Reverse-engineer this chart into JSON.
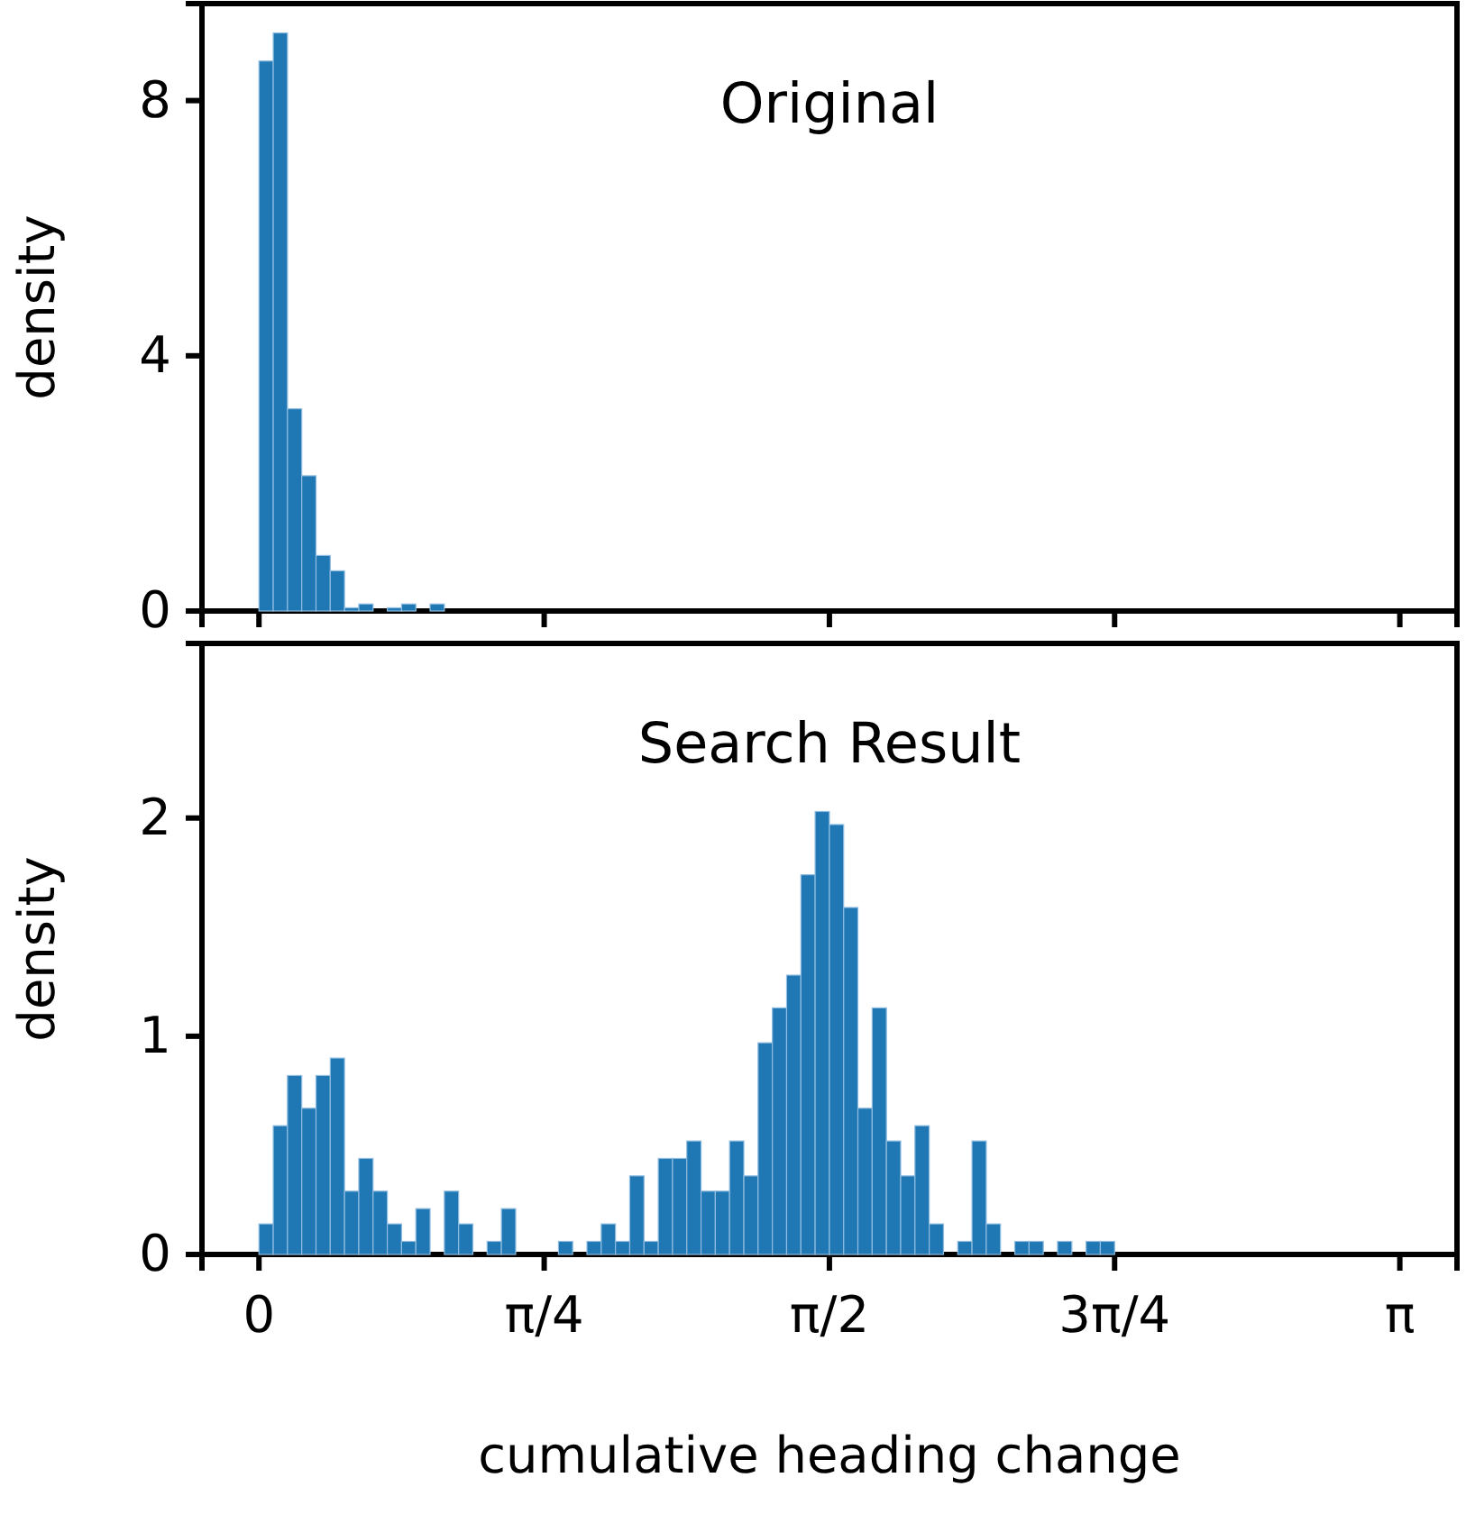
{
  "chart_data": [
    {
      "type": "histogram",
      "title": "Original",
      "ylabel": "density",
      "color": "#1f77b4",
      "bins": [
        0,
        0.0393,
        0.0785,
        0.1178,
        0.1571,
        0.1963,
        0.2356,
        0.2749,
        0.3142,
        0.3534,
        0.3927,
        0.432,
        0.4712,
        0.5105
      ],
      "values": [
        8.62,
        9.06,
        3.17,
        2.12,
        0.87,
        0.63,
        0.05,
        0.11,
        0,
        0.05,
        0.11,
        0,
        0.11
      ],
      "xlim": [
        -0.157,
        3.299
      ],
      "xticks": [
        {
          "value": 0,
          "label": null
        },
        {
          "value": 0.7854,
          "label": null
        },
        {
          "value": 1.5708,
          "label": null
        },
        {
          "value": 2.3562,
          "label": null
        },
        {
          "value": 3.1416,
          "label": null
        }
      ],
      "ylim": [
        0,
        9.52
      ],
      "yticks": [
        0,
        4,
        8
      ],
      "tick_labels": "y"
    },
    {
      "type": "histogram",
      "title": "Search Result",
      "ylabel": "density",
      "xlabel": "cumulative heading change",
      "color": "#1f77b4",
      "bins": [
        0,
        0.0393,
        0.0785,
        0.1178,
        0.1571,
        0.1963,
        0.2356,
        0.2749,
        0.3142,
        0.3534,
        0.3927,
        0.432,
        0.4712,
        0.5105,
        0.5498,
        0.589,
        0.6283,
        0.6676,
        0.7069,
        0.7461,
        0.7854,
        0.8247,
        0.8639,
        0.9032,
        0.9425,
        0.9817,
        1.021,
        1.0603,
        1.0996,
        1.1388,
        1.1781,
        1.2174,
        1.2566,
        1.2959,
        1.3352,
        1.3744,
        1.4137,
        1.453,
        1.4923,
        1.5315,
        1.5708,
        1.6101,
        1.6493,
        1.6886,
        1.7279,
        1.7671,
        1.8064,
        1.8457,
        1.885,
        1.9242,
        1.9635,
        2.0028,
        2.042,
        2.0813,
        2.1206,
        2.1598,
        2.1991,
        2.2384,
        2.2777,
        2.3169,
        2.3562
      ],
      "values": [
        0.14,
        0.59,
        0.82,
        0.67,
        0.82,
        0.9,
        0.29,
        0.44,
        0.29,
        0.14,
        0.06,
        0.21,
        0,
        0.29,
        0.14,
        0,
        0.06,
        0.21,
        0,
        0,
        0,
        0.06,
        0,
        0.06,
        0.14,
        0.06,
        0.36,
        0.06,
        0.44,
        0.44,
        0.52,
        0.29,
        0.29,
        0.52,
        0.36,
        0.97,
        1.13,
        1.28,
        1.74,
        2.03,
        1.97,
        1.59,
        0.67,
        1.13,
        0.52,
        0.36,
        0.59,
        0.14,
        0,
        0.06,
        0.52,
        0.14,
        0,
        0.06,
        0.06,
        0,
        0.06,
        0,
        0.06,
        0.06
      ],
      "xlim": [
        -0.157,
        3.299
      ],
      "xticks": [
        0,
        {
          "value": 0.7854,
          "label": "π/4"
        },
        {
          "value": 1.5708,
          "label": "π/2"
        },
        {
          "value": 2.3562,
          "label": "3π/4"
        },
        {
          "value": 3.1416,
          "label": "π"
        }
      ],
      "ylim": [
        0,
        2.8
      ],
      "yticks": [
        0,
        1,
        2
      ]
    }
  ]
}
